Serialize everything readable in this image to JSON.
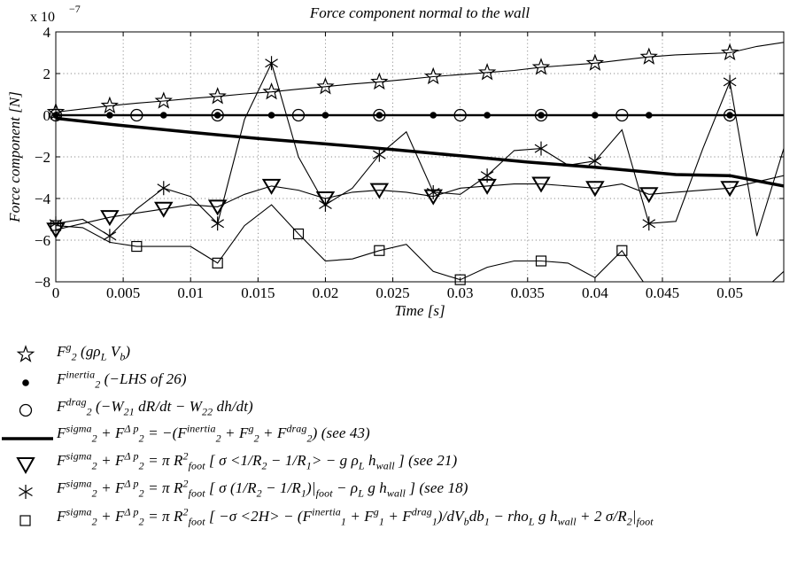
{
  "chart_data": {
    "type": "line",
    "title": "Force component normal to the wall",
    "xlabel": "Time [s]",
    "ylabel": "Force component [N]",
    "y_scale_label": "x 10",
    "y_scale_exponent": "−7",
    "xlim": [
      0,
      0.054
    ],
    "ylim": [
      -8,
      4
    ],
    "grid": true,
    "x_ticks": [
      0,
      0.005,
      0.01,
      0.015,
      0.02,
      0.025,
      0.03,
      0.035,
      0.04,
      0.045,
      0.05
    ],
    "x_tick_labels": [
      "0",
      "0.005",
      "0.01",
      "0.015",
      "0.02",
      "0.025",
      "0.03",
      "0.035",
      "0.04",
      "0.045",
      "0.05"
    ],
    "y_ticks": [
      -8,
      -6,
      -4,
      -2,
      0,
      2,
      4
    ],
    "y_tick_labels": [
      "−8",
      "−6",
      "−4",
      "−2",
      "0",
      "2",
      "4"
    ],
    "series": [
      {
        "name": "F2^g (gρL Vb)",
        "marker": "star",
        "x": [
          0,
          0.002,
          0.004,
          0.006,
          0.008,
          0.01,
          0.012,
          0.014,
          0.016,
          0.018,
          0.02,
          0.022,
          0.024,
          0.026,
          0.028,
          0.03,
          0.032,
          0.034,
          0.036,
          0.038,
          0.04,
          0.042,
          0.044,
          0.046,
          0.048,
          0.05,
          0.052,
          0.054
        ],
        "y": [
          0.15,
          0.3,
          0.45,
          0.58,
          0.68,
          0.8,
          0.9,
          1.02,
          1.12,
          1.25,
          1.37,
          1.5,
          1.6,
          1.72,
          1.85,
          1.95,
          2.05,
          2.15,
          2.3,
          2.4,
          2.5,
          2.65,
          2.8,
          2.9,
          2.95,
          3.0,
          3.3,
          3.5
        ],
        "marker_x": [
          0,
          0.004,
          0.008,
          0.012,
          0.016,
          0.02,
          0.024,
          0.028,
          0.032,
          0.036,
          0.04,
          0.044,
          0.05
        ],
        "marker_y": [
          0.15,
          0.45,
          0.68,
          0.9,
          1.12,
          1.37,
          1.6,
          1.85,
          2.05,
          2.3,
          2.5,
          2.8,
          3.0
        ]
      },
      {
        "name": "F2^inertia (−LHS of 26)",
        "marker": "dot",
        "x": [
          0,
          0.054
        ],
        "y": [
          0,
          0
        ],
        "marker_x": [
          0,
          0.004,
          0.008,
          0.012,
          0.016,
          0.02,
          0.024,
          0.028,
          0.032,
          0.036,
          0.04,
          0.044,
          0.05
        ],
        "marker_y": [
          0,
          0,
          0,
          0,
          0,
          0,
          0,
          0,
          0,
          0,
          0,
          0,
          0
        ]
      },
      {
        "name": "F2^drag (−W21 dR/dt − W22 dh/dt)",
        "marker": "circle",
        "x": [
          0,
          0.054
        ],
        "y": [
          0,
          0
        ],
        "marker_x": [
          0,
          0.006,
          0.012,
          0.018,
          0.024,
          0.03,
          0.036,
          0.042,
          0.05
        ],
        "marker_y": [
          0,
          0,
          0,
          0,
          0,
          0,
          0,
          0,
          0
        ]
      },
      {
        "name": "F2^sigma + F2^Δp = −(F2^inertia + F2^g + F2^drag) (see 43)",
        "marker": "thick-line",
        "x": [
          0,
          0.005,
          0.01,
          0.015,
          0.02,
          0.025,
          0.03,
          0.035,
          0.04,
          0.046,
          0.05,
          0.054
        ],
        "y": [
          -0.15,
          -0.5,
          -0.82,
          -1.12,
          -1.38,
          -1.65,
          -1.95,
          -2.25,
          -2.5,
          -2.85,
          -2.9,
          -3.4
        ]
      },
      {
        "name": "F2^sigma + F2^Δp = π Rfoot² [σ <1/R2 − 1/R1> − g ρL hwall] (see 21)",
        "marker": "triangle",
        "x": [
          0,
          0.002,
          0.004,
          0.006,
          0.008,
          0.01,
          0.012,
          0.014,
          0.016,
          0.018,
          0.02,
          0.022,
          0.024,
          0.026,
          0.028,
          0.03,
          0.032,
          0.034,
          0.036,
          0.038,
          0.04,
          0.042,
          0.044,
          0.046,
          0.048,
          0.05,
          0.052,
          0.054
        ],
        "y": [
          -5.5,
          -5.2,
          -4.9,
          -4.7,
          -4.5,
          -4.3,
          -4.4,
          -3.8,
          -3.4,
          -3.6,
          -4.0,
          -3.7,
          -3.6,
          -3.7,
          -3.9,
          -3.5,
          -3.4,
          -3.3,
          -3.3,
          -3.4,
          -3.5,
          -3.3,
          -3.8,
          -3.7,
          -3.6,
          -3.5,
          -3.2,
          -2.9
        ],
        "marker_x": [
          0,
          0.004,
          0.008,
          0.012,
          0.016,
          0.02,
          0.024,
          0.028,
          0.032,
          0.036,
          0.04,
          0.044,
          0.05
        ],
        "marker_y": [
          -5.5,
          -4.9,
          -4.5,
          -4.4,
          -3.4,
          -4.0,
          -3.6,
          -3.9,
          -3.4,
          -3.3,
          -3.5,
          -3.8,
          -3.5
        ]
      },
      {
        "name": "F2^sigma + F2^Δp = π Rfoot² [σ (1/R2 − 1/R1)|foot − ρL g hwall] (see 18)",
        "marker": "asterisk",
        "x": [
          0,
          0.002,
          0.004,
          0.006,
          0.008,
          0.01,
          0.012,
          0.014,
          0.016,
          0.018,
          0.02,
          0.022,
          0.024,
          0.026,
          0.028,
          0.03,
          0.032,
          0.034,
          0.036,
          0.038,
          0.04,
          0.042,
          0.044,
          0.046,
          0.048,
          0.05,
          0.052,
          0.054
        ],
        "y": [
          -5.2,
          -5.0,
          -5.8,
          -4.5,
          -3.5,
          -3.9,
          -5.2,
          -0.2,
          2.5,
          -2.0,
          -4.3,
          -3.5,
          -1.9,
          -0.8,
          -3.7,
          -3.8,
          -2.9,
          -1.7,
          -1.6,
          -2.4,
          -2.2,
          -0.7,
          -5.2,
          -5.1,
          -1.6,
          1.6,
          -5.8,
          -1.6
        ],
        "marker_x": [
          0,
          0.004,
          0.008,
          0.012,
          0.016,
          0.02,
          0.024,
          0.028,
          0.032,
          0.036,
          0.04,
          0.044,
          0.05
        ],
        "marker_y": [
          -5.2,
          -5.8,
          -3.5,
          -5.2,
          2.5,
          -4.3,
          -1.9,
          -3.7,
          -2.9,
          -1.6,
          -2.2,
          -5.2,
          1.6
        ]
      },
      {
        "name": "F2^sigma + F2^Δp = π Rfoot² [−σ <2H> − (F1^inertia + F1^g + F1^drag)/dVb db1 − rhoL g hwall + 2 σ/R2|foot]",
        "marker": "square",
        "x": [
          0,
          0.002,
          0.004,
          0.006,
          0.008,
          0.01,
          0.012,
          0.014,
          0.016,
          0.018,
          0.02,
          0.022,
          0.024,
          0.026,
          0.028,
          0.03,
          0.032,
          0.034,
          0.036,
          0.038,
          0.04,
          0.042,
          0.044,
          0.046,
          0.048,
          0.05,
          0.052,
          0.054
        ],
        "y": [
          -5.3,
          -5.4,
          -6.1,
          -6.3,
          -6.3,
          -6.3,
          -7.1,
          -5.3,
          -4.3,
          -5.7,
          -7.0,
          -6.9,
          -6.5,
          -6.2,
          -7.5,
          -7.9,
          -7.3,
          -7.0,
          -7.0,
          -7.1,
          -7.8,
          -6.5,
          -8.4,
          -8.8,
          -8.9,
          -8.9,
          -8.7,
          -7.5
        ],
        "marker_x": [
          0,
          0.006,
          0.012,
          0.018,
          0.024,
          0.03,
          0.036,
          0.042
        ],
        "marker_y": [
          -5.3,
          -6.3,
          -7.1,
          -5.7,
          -6.5,
          -7.9,
          -7.0,
          -6.5
        ]
      }
    ]
  },
  "legend": {
    "items": [
      {
        "parts": [
          [
            "F"
          ],
          [
            "g",
            "sup"
          ],
          [
            "2",
            "sub"
          ],
          [
            "   (gρ"
          ],
          [
            "L",
            "sub"
          ],
          [
            " V"
          ],
          [
            "b",
            "sub"
          ],
          [
            ")"
          ]
        ]
      },
      {
        "parts": [
          [
            "F"
          ],
          [
            "inertia",
            "sup"
          ],
          [
            "2",
            "sub"
          ],
          [
            "   (−LHS of 26)"
          ]
        ]
      },
      {
        "parts": [
          [
            "F"
          ],
          [
            "drag",
            "sup"
          ],
          [
            "2",
            "sub"
          ],
          [
            "   (−W"
          ],
          [
            "21",
            "sub"
          ],
          [
            " dR/dt − W"
          ],
          [
            "22",
            "sub"
          ],
          [
            " dh/dt)"
          ]
        ]
      },
      {
        "parts": [
          [
            "F"
          ],
          [
            "sigma",
            "sup"
          ],
          [
            "2",
            "sub"
          ],
          [
            " + F"
          ],
          [
            "Δ p",
            "sup"
          ],
          [
            "2",
            "sub"
          ],
          [
            " = −(F"
          ],
          [
            "inertia",
            "sup"
          ],
          [
            "2",
            "sub"
          ],
          [
            " + F"
          ],
          [
            "g",
            "sup"
          ],
          [
            "2",
            "sub"
          ],
          [
            " + F"
          ],
          [
            "drag",
            "sup"
          ],
          [
            "2",
            "sub"
          ],
          [
            ")    (see 43)"
          ]
        ]
      },
      {
        "parts": [
          [
            "F"
          ],
          [
            "sigma",
            "sup"
          ],
          [
            "2",
            "sub"
          ],
          [
            " + F"
          ],
          [
            "Δ p",
            "sup"
          ],
          [
            "2",
            "sub"
          ],
          [
            " = π R"
          ],
          [
            "2",
            "sup"
          ],
          [
            "foot",
            "sub"
          ],
          [
            " [ σ <1/R"
          ],
          [
            "2",
            "sub"
          ],
          [
            " − 1/R"
          ],
          [
            "1",
            "sub"
          ],
          [
            "> − g ρ"
          ],
          [
            "L",
            "sub"
          ],
          [
            " h"
          ],
          [
            "wall",
            "sub"
          ],
          [
            " ]    (see 21)"
          ]
        ]
      },
      {
        "parts": [
          [
            "F"
          ],
          [
            "sigma",
            "sup"
          ],
          [
            "2",
            "sub"
          ],
          [
            " + F"
          ],
          [
            "Δ p",
            "sup"
          ],
          [
            "2",
            "sub"
          ],
          [
            " = π R"
          ],
          [
            "2",
            "sup"
          ],
          [
            "foot",
            "sub"
          ],
          [
            " [ σ (1/R"
          ],
          [
            "2",
            "sub"
          ],
          [
            " − 1/R"
          ],
          [
            "1",
            "sub"
          ],
          [
            ")|"
          ],
          [
            "foot",
            "sub"
          ],
          [
            " − ρ"
          ],
          [
            "L",
            "sub"
          ],
          [
            " g  h"
          ],
          [
            "wall",
            "sub"
          ],
          [
            " ]    (see 18)"
          ]
        ]
      },
      {
        "parts": [
          [
            "F"
          ],
          [
            "sigma",
            "sup"
          ],
          [
            "2",
            "sub"
          ],
          [
            " + F"
          ],
          [
            "Δ p",
            "sup"
          ],
          [
            "2",
            "sub"
          ],
          [
            " = π R"
          ],
          [
            "2",
            "sup"
          ],
          [
            "foot",
            "sub"
          ],
          [
            " [ −σ <2H> − (F"
          ],
          [
            "inertia",
            "sup"
          ],
          [
            "1",
            "sub"
          ],
          [
            " + F"
          ],
          [
            "g",
            "sup"
          ],
          [
            "1",
            "sub"
          ],
          [
            " + F"
          ],
          [
            "drag",
            "sup"
          ],
          [
            "1",
            "sub"
          ],
          [
            ")/dV"
          ],
          [
            "b",
            "sub"
          ],
          [
            "db"
          ],
          [
            "1",
            "sub"
          ],
          [
            " − rho"
          ],
          [
            "L",
            "sub"
          ],
          [
            " g h"
          ],
          [
            "wall",
            "sub"
          ],
          [
            " + 2 σ/R"
          ],
          [
            "2",
            "sub"
          ],
          [
            "|"
          ],
          [
            "foot",
            "sub"
          ]
        ]
      }
    ]
  }
}
